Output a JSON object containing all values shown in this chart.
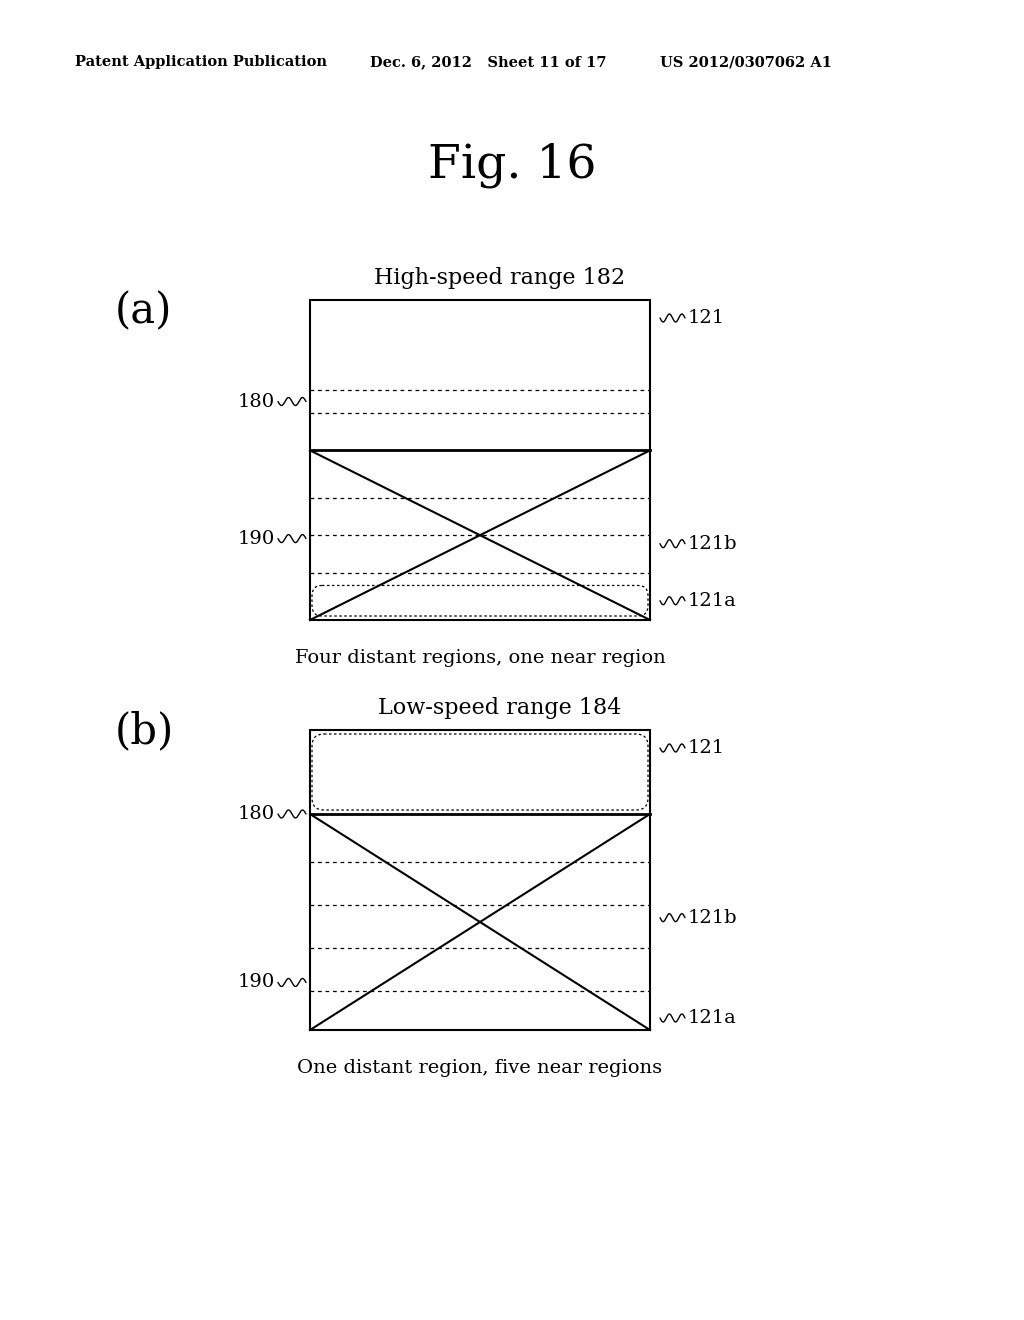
{
  "header_left": "Patent Application Publication",
  "header_mid": "Dec. 6, 2012   Sheet 11 of 17",
  "header_right": "US 2012/0307062 A1",
  "fig_title": "Fig. 16",
  "panel_a_label": "(a)",
  "panel_a_title": "High-speed range 182",
  "panel_a_caption": "Four distant regions, one near region",
  "panel_b_label": "(b)",
  "panel_b_title": "Low-speed range 184",
  "panel_b_caption": "One distant region, five near regions",
  "label_121": "121",
  "label_121b": "121b",
  "label_121a": "121a",
  "label_180": "180",
  "label_190": "190",
  "bg_color": "#ffffff"
}
